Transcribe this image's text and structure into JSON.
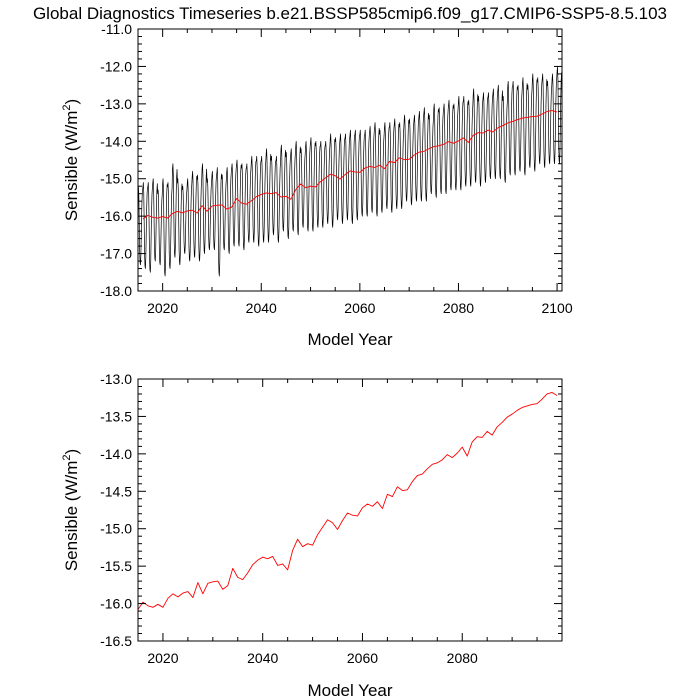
{
  "figure_title": "Global Diagnostics Timeseries b.e21.BSSP585cmip6.f09_g17.CMIP6-SSP5-8.5.103",
  "chart_data": [
    {
      "type": "line",
      "title": "",
      "xlabel": "Model Year",
      "ylabel": "Sensible (W/m",
      "ylabel_sup": "2",
      "ylabel_close": ")",
      "xlim": [
        2015,
        2101
      ],
      "ylim": [
        -18.0,
        -11.0
      ],
      "grid": false,
      "x_ticks": [
        2020,
        2040,
        2060,
        2080,
        2100
      ],
      "x_tick_labels": [
        "2020",
        "2040",
        "2060",
        "2080",
        "2100"
      ],
      "y_ticks": [
        -18.0,
        -17.0,
        -16.0,
        -15.0,
        -14.0,
        -13.0,
        -12.0,
        -11.0
      ],
      "y_tick_labels": [
        "-18.0",
        "-17.0",
        "-16.0",
        "-15.0",
        "-14.0",
        "-13.0",
        "-12.0",
        "-11.0"
      ],
      "series": [
        {
          "color": "#000000",
          "style": "monthly",
          "x_start": 2015,
          "x_step": 1,
          "annual_max": [
            -15.2,
            -15.1,
            -15.1,
            -15.0,
            -15.3,
            -15.0,
            -15.1,
            -14.6,
            -15.0,
            -15.2,
            -15.0,
            -14.8,
            -14.9,
            -14.6,
            -15.0,
            -14.8,
            -14.7,
            -14.9,
            -14.7,
            -14.6,
            -14.5,
            -14.6,
            -14.6,
            -14.4,
            -14.4,
            -14.4,
            -14.2,
            -14.4,
            -14.4,
            -14.1,
            -14.3,
            -14.2,
            -14.0,
            -14.2,
            -14.0,
            -13.9,
            -14.0,
            -14.0,
            -14.0,
            -13.8,
            -13.9,
            -13.8,
            -13.8,
            -13.7,
            -13.7,
            -13.7,
            -13.7,
            -13.6,
            -13.5,
            -13.7,
            -13.5,
            -13.5,
            -13.4,
            -13.5,
            -13.3,
            -13.4,
            -13.3,
            -13.2,
            -13.1,
            -13.3,
            -13.0,
            -13.1,
            -13.0,
            -12.9,
            -13.0,
            -12.8,
            -12.8,
            -12.9,
            -12.6,
            -12.8,
            -12.7,
            -12.7,
            -12.6,
            -12.5,
            -12.8,
            -12.4,
            -12.4,
            -12.5,
            -12.3,
            -12.5,
            -12.2,
            -12.3,
            -12.2,
            -12.4,
            -12.2,
            -12.0
          ],
          "annual_min": [
            -17.3,
            -17.4,
            -17.5,
            -17.2,
            -17.3,
            -17.6,
            -17.4,
            -17.1,
            -17.3,
            -17.0,
            -17.2,
            -17.1,
            -17.2,
            -17.0,
            -16.9,
            -16.9,
            -17.6,
            -16.9,
            -17.0,
            -16.8,
            -16.8,
            -16.9,
            -16.7,
            -16.7,
            -16.8,
            -16.7,
            -16.7,
            -16.5,
            -16.7,
            -16.4,
            -16.6,
            -16.4,
            -16.5,
            -16.3,
            -16.4,
            -16.4,
            -16.3,
            -16.3,
            -16.2,
            -16.3,
            -16.1,
            -16.2,
            -16.1,
            -16.2,
            -16.1,
            -16.0,
            -16.0,
            -15.9,
            -16.0,
            -15.9,
            -15.8,
            -15.9,
            -15.8,
            -15.8,
            -15.6,
            -15.7,
            -15.6,
            -15.6,
            -15.6,
            -15.4,
            -15.5,
            -15.4,
            -15.4,
            -15.3,
            -15.3,
            -15.3,
            -15.2,
            -15.2,
            -15.1,
            -15.2,
            -15.1,
            -15.0,
            -15.0,
            -15.0,
            -15.1,
            -14.9,
            -14.9,
            -14.8,
            -14.9,
            -14.7,
            -14.8,
            -14.6,
            -14.7,
            -14.6,
            -14.6,
            -14.6
          ]
        },
        {
          "color": "#ff0000",
          "style": "annual",
          "x": [
            2016,
            2017,
            2018,
            2019,
            2020,
            2021,
            2022,
            2023,
            2024,
            2025,
            2026,
            2027,
            2028,
            2029,
            2030,
            2031,
            2032,
            2033,
            2034,
            2035,
            2036,
            2037,
            2038,
            2039,
            2040,
            2041,
            2042,
            2043,
            2044,
            2045,
            2046,
            2047,
            2048,
            2049,
            2050,
            2051,
            2052,
            2053,
            2054,
            2055,
            2056,
            2057,
            2058,
            2059,
            2060,
            2061,
            2062,
            2063,
            2064,
            2065,
            2066,
            2067,
            2068,
            2069,
            2070,
            2071,
            2072,
            2073,
            2074,
            2075,
            2076,
            2077,
            2078,
            2079,
            2080,
            2081,
            2082,
            2083,
            2084,
            2085,
            2086,
            2087,
            2088,
            2089,
            2090,
            2091,
            2092,
            2093,
            2094,
            2095,
            2096,
            2097,
            2098,
            2099,
            2100
          ],
          "values": [
            -16.08,
            -15.98,
            -16.03,
            -16.05,
            -16.01,
            -16.05,
            -15.93,
            -15.87,
            -15.91,
            -15.86,
            -15.84,
            -15.92,
            -15.72,
            -15.87,
            -15.73,
            -15.71,
            -15.7,
            -15.81,
            -15.76,
            -15.53,
            -15.65,
            -15.68,
            -15.59,
            -15.48,
            -15.42,
            -15.38,
            -15.4,
            -15.37,
            -15.49,
            -15.47,
            -15.55,
            -15.29,
            -15.14,
            -15.24,
            -15.2,
            -15.22,
            -15.08,
            -14.98,
            -14.88,
            -14.92,
            -15.01,
            -14.89,
            -14.79,
            -14.82,
            -14.83,
            -14.72,
            -14.67,
            -14.7,
            -14.64,
            -14.73,
            -14.54,
            -14.57,
            -14.44,
            -14.49,
            -14.48,
            -14.37,
            -14.29,
            -14.27,
            -14.2,
            -14.14,
            -14.12,
            -14.08,
            -14.01,
            -14.05,
            -13.99,
            -13.91,
            -14.03,
            -13.84,
            -13.77,
            -13.78,
            -13.7,
            -13.75,
            -13.64,
            -13.58,
            -13.51,
            -13.47,
            -13.42,
            -13.38,
            -13.36,
            -13.34,
            -13.33,
            -13.27,
            -13.2,
            -13.18,
            -13.22
          ]
        }
      ]
    },
    {
      "type": "line",
      "title": "",
      "xlabel": "Model Year",
      "ylabel": "Sensible (W/m",
      "ylabel_sup": "2",
      "ylabel_close": ")",
      "xlim": [
        2015,
        2100
      ],
      "ylim": [
        -16.5,
        -13.0
      ],
      "grid": false,
      "x_ticks": [
        2020,
        2040,
        2060,
        2080
      ],
      "x_tick_labels": [
        "2020",
        "2040",
        "2060",
        "2080"
      ],
      "y_ticks": [
        -16.5,
        -16.0,
        -15.5,
        -15.0,
        -14.5,
        -14.0,
        -13.5,
        -13.0
      ],
      "y_tick_labels": [
        "-16.5",
        "-16.0",
        "-15.5",
        "-15.0",
        "-14.5",
        "-14.0",
        "-13.5",
        "-13.0"
      ],
      "series": [
        {
          "color": "#ff0000",
          "style": "annual",
          "x": [
            2015,
            2016,
            2017,
            2018,
            2019,
            2020,
            2021,
            2022,
            2023,
            2024,
            2025,
            2026,
            2027,
            2028,
            2029,
            2030,
            2031,
            2032,
            2033,
            2034,
            2035,
            2036,
            2037,
            2038,
            2039,
            2040,
            2041,
            2042,
            2043,
            2044,
            2045,
            2046,
            2047,
            2048,
            2049,
            2050,
            2051,
            2052,
            2053,
            2054,
            2055,
            2056,
            2057,
            2058,
            2059,
            2060,
            2061,
            2062,
            2063,
            2064,
            2065,
            2066,
            2067,
            2068,
            2069,
            2070,
            2071,
            2072,
            2073,
            2074,
            2075,
            2076,
            2077,
            2078,
            2079,
            2080,
            2081,
            2082,
            2083,
            2084,
            2085,
            2086,
            2087,
            2088,
            2089,
            2090,
            2091,
            2092,
            2093,
            2094,
            2095,
            2096,
            2097,
            2098,
            2099
          ],
          "values": [
            -16.08,
            -15.98,
            -16.03,
            -16.05,
            -16.01,
            -16.05,
            -15.93,
            -15.87,
            -15.91,
            -15.86,
            -15.84,
            -15.92,
            -15.72,
            -15.87,
            -15.73,
            -15.71,
            -15.7,
            -15.81,
            -15.76,
            -15.53,
            -15.65,
            -15.68,
            -15.59,
            -15.48,
            -15.42,
            -15.38,
            -15.4,
            -15.37,
            -15.49,
            -15.47,
            -15.55,
            -15.29,
            -15.14,
            -15.24,
            -15.2,
            -15.22,
            -15.08,
            -14.98,
            -14.88,
            -14.92,
            -15.01,
            -14.89,
            -14.79,
            -14.82,
            -14.83,
            -14.72,
            -14.67,
            -14.7,
            -14.64,
            -14.73,
            -14.54,
            -14.57,
            -14.44,
            -14.49,
            -14.48,
            -14.37,
            -14.29,
            -14.27,
            -14.2,
            -14.14,
            -14.12,
            -14.08,
            -14.01,
            -14.05,
            -13.99,
            -13.91,
            -14.03,
            -13.84,
            -13.77,
            -13.78,
            -13.7,
            -13.75,
            -13.64,
            -13.58,
            -13.51,
            -13.47,
            -13.42,
            -13.38,
            -13.36,
            -13.34,
            -13.33,
            -13.27,
            -13.2,
            -13.18,
            -13.22
          ]
        }
      ]
    }
  ]
}
